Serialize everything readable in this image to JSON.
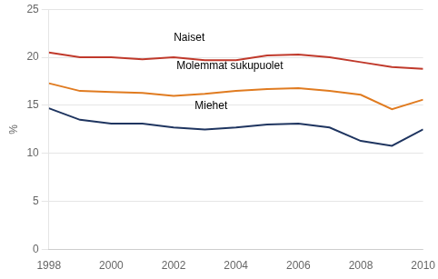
{
  "chart_data": {
    "type": "line",
    "x": [
      1998,
      1999,
      2000,
      2001,
      2002,
      2003,
      2004,
      2005,
      2006,
      2007,
      2008,
      2009,
      2010
    ],
    "series": [
      {
        "name": "Naiset",
        "color": "#c0392b",
        "values": [
          20.5,
          20.0,
          20.0,
          19.8,
          20.0,
          19.7,
          19.7,
          20.2,
          20.3,
          20.0,
          19.5,
          19.0,
          18.8
        ]
      },
      {
        "name": "Molemmat sukupuolet",
        "color": "#e07b20",
        "values": [
          17.3,
          16.5,
          16.4,
          16.3,
          16.0,
          16.2,
          16.5,
          16.7,
          16.8,
          16.5,
          16.1,
          14.6,
          15.6
        ]
      },
      {
        "name": "Miehet",
        "color": "#1f3560",
        "values": [
          14.7,
          13.5,
          13.1,
          13.1,
          12.7,
          12.5,
          12.7,
          13.0,
          13.1,
          12.7,
          11.3,
          10.8,
          12.5
        ]
      }
    ],
    "annotations": [
      {
        "text": "Naiset",
        "x": 2002.5,
        "y": 21.5
      },
      {
        "text": "Molemmat sukupuolet",
        "x": 2003.8,
        "y": 18.5
      },
      {
        "text": "Miehet",
        "x": 2003.2,
        "y": 14.4
      }
    ],
    "ylabel": "%",
    "xlim": [
      1998,
      2010
    ],
    "xticks": [
      1998,
      2000,
      2002,
      2004,
      2006,
      2008,
      2010
    ],
    "ylim": [
      0,
      25
    ],
    "yticks": [
      0,
      5,
      10,
      15,
      20,
      25
    ],
    "grid": true
  }
}
